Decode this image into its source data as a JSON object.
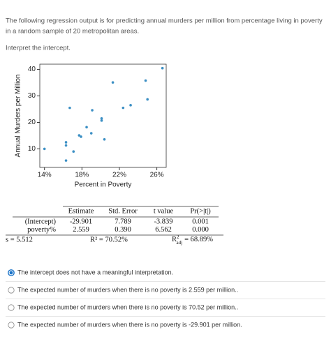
{
  "question": {
    "prompt": [
      "The following regression output is for predicting annual murders per million from percentage living in poverty",
      "in a random sample of 20 metropolitan areas."
    ],
    "task": "Interpret the intercept."
  },
  "chart_data": {
    "type": "scatter",
    "x_label": "Percent in Poverty",
    "y_label": "Annual Murders per Million",
    "color": "#3b8fc4",
    "x": [
      14.0,
      16.3,
      16.3,
      16.3,
      16.7,
      17.1,
      17.7,
      17.9,
      18.5,
      19.0,
      19.1,
      20.1,
      20.1,
      20.4,
      21.3,
      22.4,
      23.2,
      24.8,
      25.0,
      26.6
    ],
    "values": [
      10,
      12.5,
      11.3,
      5.6,
      25.5,
      9,
      15.1,
      14.6,
      18.2,
      15.9,
      24.6,
      21.5,
      20.7,
      13.6,
      35.1,
      25.5,
      26.5,
      35.8,
      28.7,
      40.5
    ],
    "xlim": [
      13.5,
      27
    ],
    "ylim": [
      3,
      42
    ],
    "xticks": [
      {
        "value": 14,
        "label": "14%"
      },
      {
        "value": 18,
        "label": "18%"
      },
      {
        "value": 22,
        "label": "22%"
      },
      {
        "value": 26,
        "label": "26%"
      }
    ],
    "yticks": [
      10,
      20,
      30,
      40
    ]
  },
  "table": {
    "header": [
      "Estimate",
      "Std. Error",
      "t value",
      "Pr(>|t|)"
    ],
    "rows": [
      [
        "(Intercept)",
        "-29.901",
        "7.789",
        "-3.839",
        "0.001"
      ],
      [
        "poverty%",
        "2.559",
        "0.390",
        "6.562",
        "0.000"
      ]
    ],
    "footer": {
      "s": "s = 5.512",
      "r2": "R² = 70.52%",
      "r2_adj": {
        "sym": "R",
        "sup": "2",
        "sub": "adj",
        "value": "= 68.89%"
      }
    }
  },
  "options": {
    "choices": [
      "The intercept does not have a meaningful interpretation.",
      "The expected number of murders when there is no poverty is 2.559 per million..",
      "The expected number of murders when there is no poverty is 70.52 per million..",
      "The expected number of murders when there is no poverty is -29.901 per million."
    ],
    "selected": 0
  }
}
